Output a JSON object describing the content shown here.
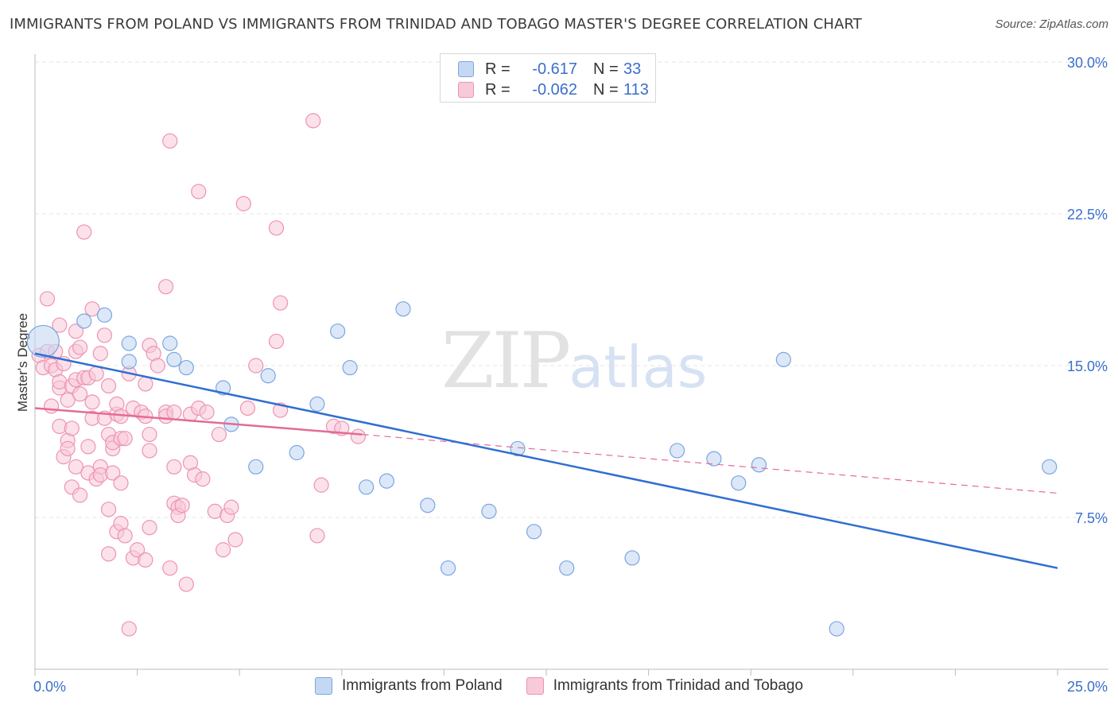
{
  "title": "IMMIGRANTS FROM POLAND VS IMMIGRANTS FROM TRINIDAD AND TOBAGO MASTER'S DEGREE CORRELATION CHART",
  "source": "Source: ZipAtlas.com",
  "watermark": {
    "a": "ZIP",
    "b": "atlas"
  },
  "legend": {
    "rows": [
      {
        "r_label": "R =",
        "r_value": "-0.617",
        "n_label": "N =",
        "n_value": "33"
      },
      {
        "r_label": "R =",
        "r_value": "-0.062",
        "n_label": "N =",
        "n_value": "113"
      }
    ]
  },
  "colors": {
    "poland_fill": "#c5d8f3",
    "poland_stroke": "#7ba6e0",
    "poland_line": "#2f6fd0",
    "tt_fill": "#f8c9d9",
    "tt_stroke": "#ee93b2",
    "tt_line": "#e36b97",
    "grid": "#e6e6e6",
    "tick_label": "#3a6fcc"
  },
  "chart_data": {
    "type": "scatter",
    "title": "IMMIGRANTS FROM POLAND VS IMMIGRANTS FROM TRINIDAD AND TOBAGO MASTER'S DEGREE CORRELATION CHART",
    "ylabel": "Master's Degree",
    "xlabel": "",
    "xlim": [
      0,
      25
    ],
    "ylim": [
      0,
      30
    ],
    "x_tick_labels": [
      "0.0%",
      "25.0%"
    ],
    "y_ticks": [
      7.5,
      15.0,
      22.5,
      30.0
    ],
    "y_tick_labels": [
      "7.5%",
      "15.0%",
      "22.5%",
      "30.0%"
    ],
    "grid": true,
    "legend_position": "top-center",
    "series": [
      {
        "name": "Immigrants from Poland",
        "trend": {
          "x0": 0.0,
          "y0": 15.6,
          "x1": 25.0,
          "y1": 5.0
        },
        "points": [
          [
            0.2,
            16.2
          ],
          [
            1.2,
            17.2
          ],
          [
            1.7,
            17.5
          ],
          [
            2.3,
            15.2
          ],
          [
            2.3,
            16.1
          ],
          [
            3.4,
            15.3
          ],
          [
            3.3,
            16.1
          ],
          [
            3.7,
            14.9
          ],
          [
            4.6,
            13.9
          ],
          [
            4.8,
            12.1
          ],
          [
            5.4,
            10.0
          ],
          [
            5.7,
            14.5
          ],
          [
            6.4,
            10.7
          ],
          [
            6.9,
            13.1
          ],
          [
            7.4,
            16.7
          ],
          [
            7.7,
            14.9
          ],
          [
            8.1,
            9.0
          ],
          [
            8.6,
            9.3
          ],
          [
            9.0,
            17.8
          ],
          [
            9.6,
            8.1
          ],
          [
            10.1,
            5.0
          ],
          [
            11.1,
            7.8
          ],
          [
            11.8,
            10.9
          ],
          [
            12.2,
            6.8
          ],
          [
            13.0,
            5.0
          ],
          [
            14.6,
            5.5
          ],
          [
            15.7,
            10.8
          ],
          [
            16.6,
            10.4
          ],
          [
            17.2,
            9.2
          ],
          [
            17.7,
            10.1
          ],
          [
            18.3,
            15.3
          ],
          [
            19.6,
            2.0
          ],
          [
            24.8,
            10.0
          ]
        ]
      },
      {
        "name": "Immigrants from Trinidad and Tobago",
        "trend": {
          "x0": 0.0,
          "y0": 12.9,
          "x1": 8.0,
          "y1": 11.6,
          "dash_x1": 25.0,
          "dash_y1": 8.7
        },
        "points": [
          [
            0.1,
            15.5
          ],
          [
            0.2,
            14.9
          ],
          [
            0.3,
            15.7
          ],
          [
            0.3,
            18.3
          ],
          [
            0.4,
            15.0
          ],
          [
            0.4,
            13.0
          ],
          [
            0.5,
            14.8
          ],
          [
            0.5,
            15.7
          ],
          [
            0.6,
            13.9
          ],
          [
            0.6,
            14.2
          ],
          [
            0.6,
            12.0
          ],
          [
            0.6,
            17.0
          ],
          [
            0.7,
            15.1
          ],
          [
            0.7,
            10.5
          ],
          [
            0.8,
            13.3
          ],
          [
            0.8,
            11.3
          ],
          [
            0.8,
            10.9
          ],
          [
            0.9,
            11.9
          ],
          [
            0.9,
            14.0
          ],
          [
            0.9,
            9.0
          ],
          [
            1.0,
            16.7
          ],
          [
            1.0,
            15.7
          ],
          [
            1.0,
            14.3
          ],
          [
            1.0,
            10.0
          ],
          [
            1.1,
            13.6
          ],
          [
            1.1,
            15.9
          ],
          [
            1.1,
            8.6
          ],
          [
            1.2,
            21.6
          ],
          [
            1.2,
            14.4
          ],
          [
            1.3,
            14.4
          ],
          [
            1.3,
            9.7
          ],
          [
            1.3,
            11.0
          ],
          [
            1.4,
            12.4
          ],
          [
            1.4,
            17.8
          ],
          [
            1.4,
            13.2
          ],
          [
            1.5,
            14.6
          ],
          [
            1.5,
            9.4
          ],
          [
            1.6,
            15.6
          ],
          [
            1.6,
            10.0
          ],
          [
            1.6,
            9.6
          ],
          [
            1.7,
            16.5
          ],
          [
            1.7,
            12.4
          ],
          [
            1.8,
            14.0
          ],
          [
            1.8,
            11.6
          ],
          [
            1.8,
            7.9
          ],
          [
            1.8,
            5.7
          ],
          [
            1.9,
            10.9
          ],
          [
            1.9,
            9.7
          ],
          [
            1.9,
            11.2
          ],
          [
            2.0,
            12.6
          ],
          [
            2.0,
            13.1
          ],
          [
            2.0,
            6.8
          ],
          [
            2.1,
            12.5
          ],
          [
            2.1,
            9.2
          ],
          [
            2.1,
            11.4
          ],
          [
            2.1,
            7.2
          ],
          [
            2.2,
            6.6
          ],
          [
            2.2,
            11.4
          ],
          [
            2.3,
            14.6
          ],
          [
            2.3,
            2.0
          ],
          [
            2.4,
            5.5
          ],
          [
            2.4,
            12.9
          ],
          [
            2.5,
            5.9
          ],
          [
            2.6,
            12.7
          ],
          [
            2.7,
            12.5
          ],
          [
            2.7,
            5.4
          ],
          [
            2.7,
            14.1
          ],
          [
            2.8,
            16.0
          ],
          [
            2.8,
            11.6
          ],
          [
            2.8,
            10.8
          ],
          [
            2.8,
            7.0
          ],
          [
            2.9,
            15.6
          ],
          [
            3.0,
            15.0
          ],
          [
            3.2,
            12.7
          ],
          [
            3.2,
            18.9
          ],
          [
            3.2,
            12.5
          ],
          [
            3.3,
            26.1
          ],
          [
            3.3,
            5.0
          ],
          [
            3.4,
            12.7
          ],
          [
            3.4,
            10.0
          ],
          [
            3.4,
            8.2
          ],
          [
            3.5,
            8.0
          ],
          [
            3.5,
            7.6
          ],
          [
            3.6,
            8.1
          ],
          [
            3.7,
            4.2
          ],
          [
            3.8,
            10.2
          ],
          [
            3.8,
            12.6
          ],
          [
            3.9,
            9.6
          ],
          [
            4.0,
            23.6
          ],
          [
            4.0,
            12.9
          ],
          [
            4.1,
            9.4
          ],
          [
            4.2,
            12.7
          ],
          [
            4.4,
            7.8
          ],
          [
            4.5,
            11.6
          ],
          [
            4.6,
            5.9
          ],
          [
            4.7,
            7.6
          ],
          [
            4.8,
            8.0
          ],
          [
            4.9,
            6.4
          ],
          [
            5.1,
            23.0
          ],
          [
            5.2,
            12.9
          ],
          [
            5.4,
            15.0
          ],
          [
            5.9,
            21.8
          ],
          [
            5.9,
            16.2
          ],
          [
            6.0,
            18.1
          ],
          [
            6.0,
            12.8
          ],
          [
            6.8,
            27.1
          ],
          [
            6.9,
            6.6
          ],
          [
            7.0,
            9.1
          ],
          [
            7.3,
            12.0
          ],
          [
            7.5,
            11.9
          ],
          [
            7.9,
            11.5
          ]
        ]
      }
    ]
  },
  "bottom_legend": [
    {
      "label": "Immigrants from Poland"
    },
    {
      "label": "Immigrants from Trinidad and Tobago"
    }
  ]
}
